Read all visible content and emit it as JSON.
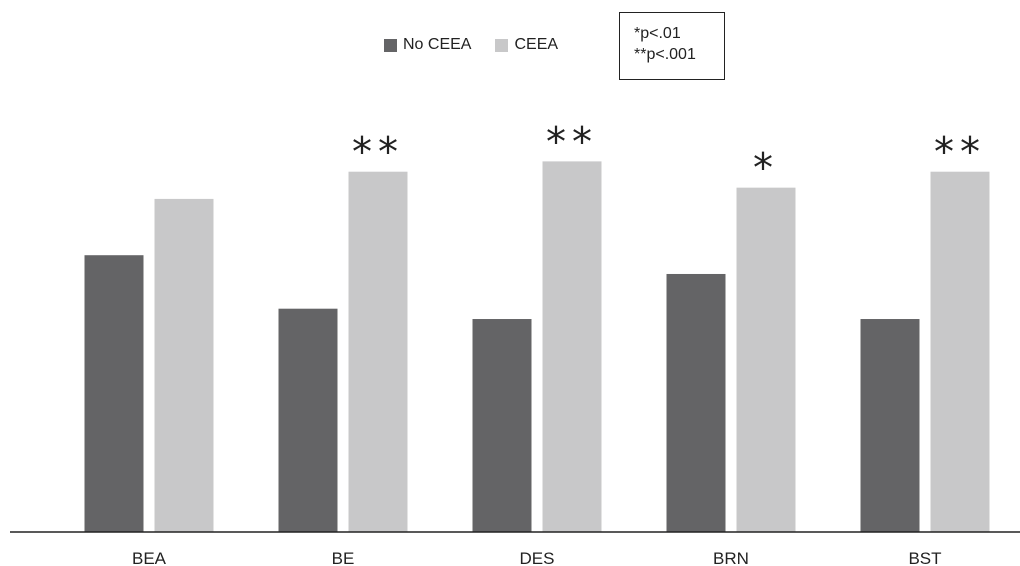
{
  "colors": {
    "no_ceea": "#646466",
    "ceea": "#c8c8c9",
    "axis": "#222222",
    "text": "#222222"
  },
  "legend": {
    "items": [
      {
        "label": "No CEEA",
        "color": "#646466"
      },
      {
        "label": "CEEA",
        "color": "#c8c8c9"
      }
    ]
  },
  "significance_key": [
    "*p<.01",
    "**p<.001"
  ],
  "chart_data": {
    "type": "bar",
    "title": "",
    "xlabel": "",
    "ylabel": "",
    "grid": false,
    "legend_position": "top",
    "categories": [
      "BEA",
      "BE",
      "DES",
      "BRN",
      "BST"
    ],
    "series": [
      {
        "name": "No CEEA",
        "values": [
          2.95,
          2.38,
          2.27,
          2.75,
          2.27
        ]
      },
      {
        "name": "CEEA",
        "values": [
          3.55,
          3.84,
          3.95,
          3.67,
          3.84
        ]
      }
    ],
    "annotations": [
      "",
      "**",
      "**",
      "*",
      "**"
    ],
    "ylim": [
      0,
      5.67
    ]
  }
}
